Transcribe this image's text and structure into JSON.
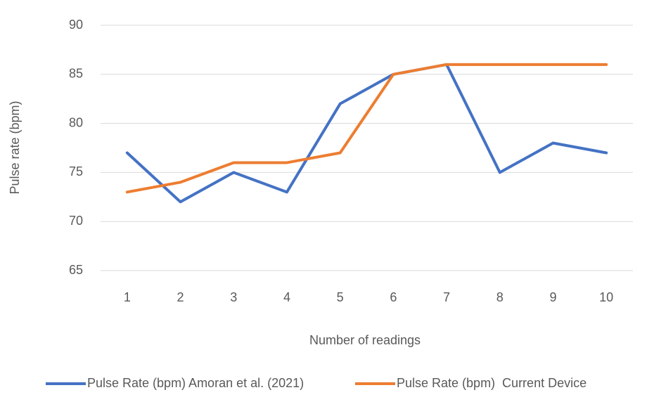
{
  "chart_data": {
    "type": "line",
    "x_label": "Number of readings",
    "y_label": "Pulse rate (bpm)",
    "categories": [
      "1",
      "2",
      "3",
      "4",
      "5",
      "6",
      "7",
      "8",
      "9",
      "10"
    ],
    "series": [
      {
        "name": "Pulse Rate (bpm) Amoran et al. (2021)",
        "color": "#4472c4",
        "values": [
          77,
          72,
          75,
          73,
          82,
          85,
          86,
          75,
          78,
          77
        ]
      },
      {
        "name": "Pulse Rate (bpm)  Current Device",
        "color": "#ed7d31",
        "values": [
          73,
          74,
          76,
          76,
          77,
          85,
          86,
          86,
          86,
          86
        ]
      }
    ],
    "ylim": [
      65,
      90
    ],
    "yticks": [
      65,
      70,
      75,
      80,
      85,
      90
    ],
    "grid": true,
    "legend": "bottom"
  }
}
